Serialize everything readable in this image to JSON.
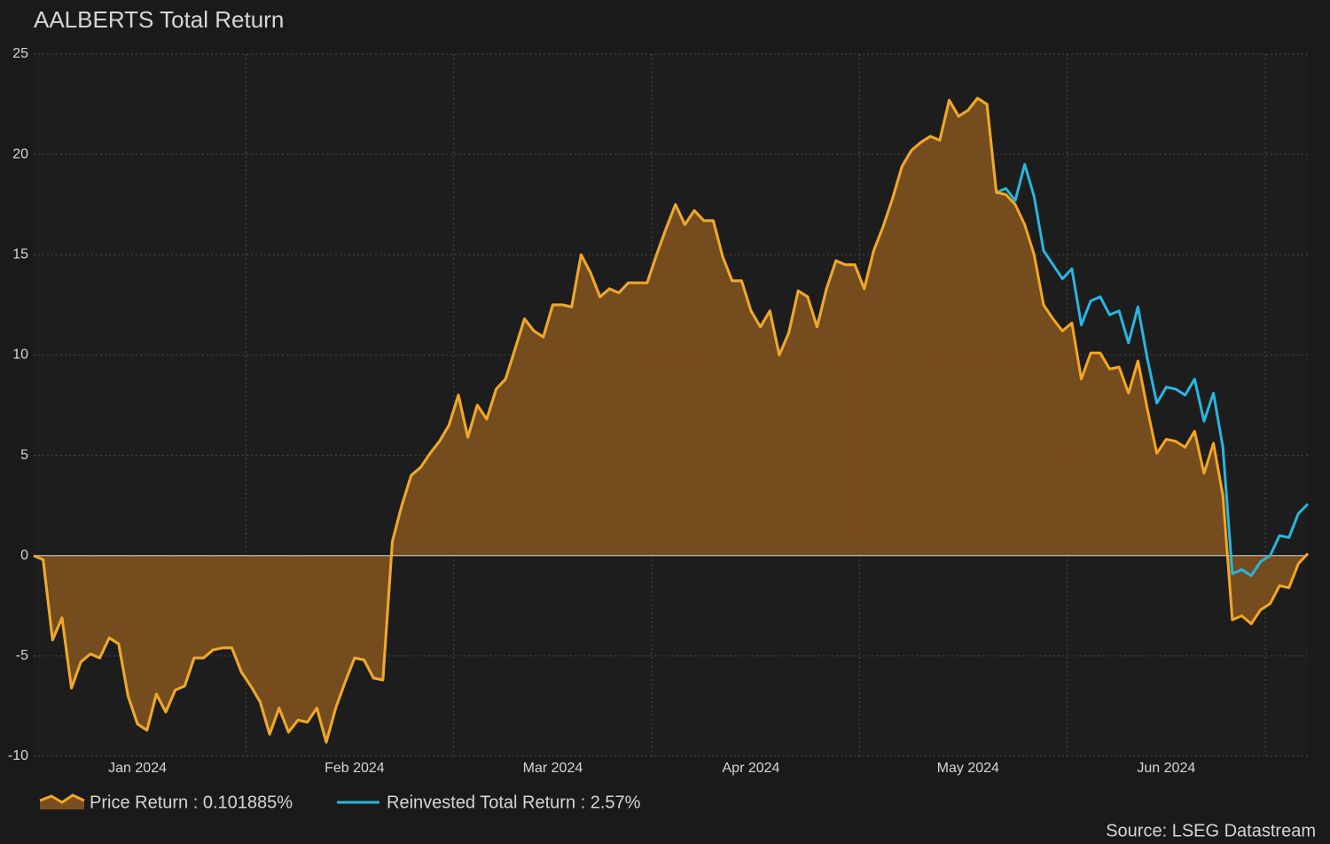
{
  "chart_data": {
    "type": "line",
    "title": "AALBERTS Total Return",
    "source": "Source: LSEG Datastream",
    "categories": [
      null,
      null,
      null,
      null,
      null,
      null,
      null,
      null,
      null,
      null,
      null,
      "Jan 2024",
      null,
      null,
      null,
      null,
      null,
      null,
      null,
      null,
      null,
      null,
      null,
      null,
      null,
      null,
      null,
      null,
      null,
      null,
      null,
      null,
      null,
      null,
      "Feb 2024",
      null,
      null,
      null,
      null,
      null,
      null,
      null,
      null,
      null,
      null,
      null,
      null,
      null,
      null,
      null,
      null,
      null,
      null,
      null,
      null,
      "Mar 2024",
      null,
      null,
      null,
      null,
      null,
      null,
      null,
      null,
      null,
      null,
      null,
      null,
      null,
      null,
      null,
      null,
      null,
      null,
      null,
      null,
      "Apr 2024",
      null,
      null,
      null,
      null,
      null,
      null,
      null,
      null,
      null,
      null,
      null,
      null,
      null,
      null,
      null,
      null,
      null,
      null,
      null,
      null,
      null,
      null,
      "May 2024",
      null,
      null,
      null,
      null,
      null,
      null,
      null,
      null,
      null,
      null,
      null,
      null,
      null,
      null,
      null,
      null,
      null,
      null,
      null,
      null,
      "Jun 2024",
      null,
      null,
      null,
      null,
      null,
      null,
      null,
      null,
      null,
      null,
      null,
      null,
      null,
      null,
      null
    ],
    "series": [
      {
        "name": "Price Return : 0.101885%",
        "color": "#f5a623",
        "fill": "#7a4f1f",
        "values": [
          0,
          -0.2,
          -4.2,
          -3.1,
          -6.6,
          -5.3,
          -4.9,
          -5.1,
          -4.1,
          -4.4,
          -7.0,
          -8.4,
          -8.7,
          -6.9,
          -7.8,
          -6.7,
          -6.5,
          -5.1,
          -5.1,
          -4.7,
          -4.6,
          -4.6,
          -5.8,
          -6.5,
          -7.3,
          -8.9,
          -7.6,
          -8.8,
          -8.2,
          -8.3,
          -7.6,
          -9.3,
          -7.6,
          -6.3,
          -5.1,
          -5.2,
          -6.1,
          -6.2,
          0.7,
          2.5,
          4.0,
          4.4,
          5.1,
          5.7,
          6.5,
          8.0,
          5.9,
          7.5,
          6.8,
          8.3,
          8.8,
          10.3,
          11.8,
          11.2,
          10.9,
          12.5,
          12.5,
          12.4,
          15.0,
          14.1,
          12.9,
          13.3,
          13.1,
          13.6,
          13.6,
          13.6,
          15.0,
          16.3,
          17.5,
          16.5,
          17.2,
          16.7,
          16.7,
          14.9,
          13.7,
          13.7,
          12.2,
          11.4,
          12.2,
          10.0,
          11.1,
          13.2,
          12.9,
          11.4,
          13.3,
          14.7,
          14.5,
          14.5,
          13.3,
          15.2,
          16.4,
          17.8,
          19.4,
          20.2,
          20.6,
          20.9,
          20.7,
          22.7,
          21.9,
          22.2,
          22.8,
          22.5,
          18.1,
          18.0,
          17.5,
          16.5,
          15.0,
          12.5,
          11.8,
          11.2,
          11.6,
          8.8,
          10.1,
          10.1,
          9.3,
          9.4,
          8.1,
          9.7,
          7.3,
          5.1,
          5.8,
          5.7,
          5.4,
          6.2,
          4.1,
          5.6,
          3.0,
          -3.2,
          -3.0,
          -3.4,
          -2.7,
          -2.4,
          -1.5,
          -1.6,
          -0.4,
          0.101885
        ]
      },
      {
        "name": "Reinvested Total Return : 2.57%",
        "color": "#29b6e0",
        "values": [
          0,
          -0.2,
          -4.2,
          -3.1,
          -6.6,
          -5.3,
          -4.9,
          -5.1,
          -4.1,
          -4.4,
          -7.0,
          -8.4,
          -8.7,
          -6.9,
          -7.8,
          -6.7,
          -6.5,
          -5.1,
          -5.1,
          -4.7,
          -4.6,
          -4.6,
          -5.8,
          -6.5,
          -7.3,
          -8.9,
          -7.6,
          -8.8,
          -8.2,
          -8.3,
          -7.6,
          -9.3,
          -7.6,
          -6.3,
          -5.1,
          -5.2,
          -6.1,
          -6.2,
          0.7,
          2.5,
          4.0,
          4.4,
          5.1,
          5.7,
          6.5,
          8.0,
          5.9,
          7.5,
          6.8,
          8.3,
          8.8,
          10.3,
          11.8,
          11.2,
          10.9,
          12.5,
          12.5,
          12.4,
          15.0,
          14.1,
          12.9,
          13.3,
          13.1,
          13.6,
          13.6,
          13.6,
          15.0,
          16.3,
          17.5,
          16.5,
          17.2,
          16.7,
          16.7,
          14.9,
          13.7,
          13.7,
          12.2,
          11.4,
          12.2,
          10.0,
          11.1,
          13.2,
          12.9,
          11.4,
          13.3,
          14.7,
          14.5,
          14.5,
          13.3,
          15.2,
          16.4,
          17.8,
          19.4,
          20.2,
          20.6,
          20.9,
          20.7,
          22.7,
          21.9,
          22.2,
          22.8,
          22.5,
          18.1,
          18.3,
          17.7,
          19.5,
          17.9,
          15.2,
          14.5,
          13.8,
          14.3,
          11.5,
          12.7,
          12.9,
          12.0,
          12.2,
          10.6,
          12.4,
          9.8,
          7.6,
          8.4,
          8.3,
          8.0,
          8.8,
          6.7,
          8.1,
          5.4,
          -0.9,
          -0.7,
          -1.0,
          -0.3,
          0.0,
          1.0,
          0.9,
          2.1,
          2.57
        ]
      }
    ],
    "ylim": [
      -10,
      25
    ],
    "yticks": [
      25,
      20,
      15,
      10,
      5,
      0,
      -5,
      -10
    ],
    "grid": true
  }
}
